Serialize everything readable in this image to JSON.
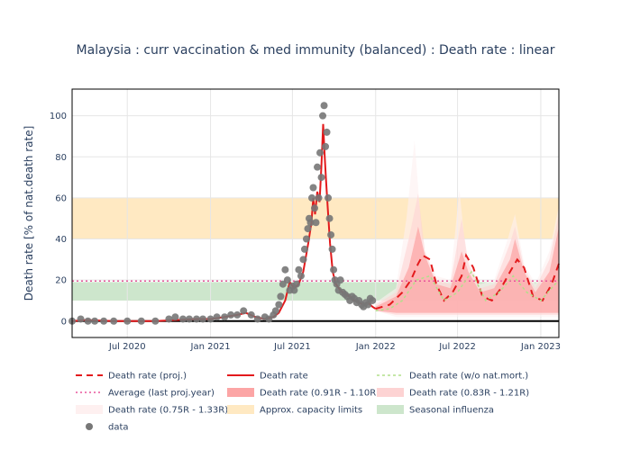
{
  "chart_data": {
    "type": "line",
    "title": "Malaysia : curr vaccination & med immunity (balanced) : Death rate : linear",
    "xlabel": "",
    "ylabel": "Death rate [% of nat.death rate]",
    "ylim": [
      -8,
      113
    ],
    "xlim": [
      "2020-03-01",
      "2023-02-10"
    ],
    "x_ticks": [
      {
        "date": "2020-07-01",
        "label": "Jul 2020"
      },
      {
        "date": "2021-01-01",
        "label": "Jan 2021"
      },
      {
        "date": "2021-07-01",
        "label": "Jul 2021"
      },
      {
        "date": "2022-01-01",
        "label": "Jan 2022"
      },
      {
        "date": "2022-07-01",
        "label": "Jul 2022"
      },
      {
        "date": "2023-01-01",
        "label": "Jan 2023"
      }
    ],
    "y_ticks": [
      0,
      20,
      40,
      60,
      80,
      100
    ],
    "bands": {
      "capacity": {
        "name": "Approx. capacity limits",
        "range": [
          40,
          60
        ],
        "color": "#ffe9c2"
      },
      "influenza": {
        "name": "Seasonal influenza",
        "range": [
          10,
          19
        ],
        "color": "#cde6cc"
      }
    },
    "average_last_proj_year": 19.5,
    "zero_line": 0,
    "colors": {
      "red": "#e31a1c",
      "band1": "#fca5a5",
      "band2": "#fdd3d3",
      "band3": "#fef0f0",
      "wo_mort": "#b2df8a",
      "avg": "#e8559b",
      "data": "#777777",
      "axis_text": "#2a3f5f"
    },
    "series": [
      {
        "name": "data",
        "kind": "points",
        "x": [
          "2020-03-01",
          "2020-03-20",
          "2020-04-05",
          "2020-04-20",
          "2020-05-10",
          "2020-06-01",
          "2020-07-01",
          "2020-08-01",
          "2020-09-01",
          "2020-10-01",
          "2020-10-15",
          "2020-11-01",
          "2020-11-15",
          "2020-12-01",
          "2020-12-15",
          "2021-01-01",
          "2021-01-15",
          "2021-02-01",
          "2021-02-15",
          "2021-03-01",
          "2021-03-15",
          "2021-04-01",
          "2021-04-15",
          "2021-05-01",
          "2021-05-10",
          "2021-05-20",
          "2021-05-25",
          "2021-06-01",
          "2021-06-05",
          "2021-06-10",
          "2021-06-15",
          "2021-06-20",
          "2021-06-25",
          "2021-07-01",
          "2021-07-05",
          "2021-07-10",
          "2021-07-15",
          "2021-07-20",
          "2021-07-25",
          "2021-07-28",
          "2021-08-01",
          "2021-08-04",
          "2021-08-07",
          "2021-08-10",
          "2021-08-13",
          "2021-08-16",
          "2021-08-19",
          "2021-08-22",
          "2021-08-25",
          "2021-08-28",
          "2021-08-31",
          "2021-09-03",
          "2021-09-06",
          "2021-09-09",
          "2021-09-12",
          "2021-09-15",
          "2021-09-18",
          "2021-09-21",
          "2021-09-24",
          "2021-09-27",
          "2021-09-30",
          "2021-10-03",
          "2021-10-07",
          "2021-10-11",
          "2021-10-15",
          "2021-10-20",
          "2021-10-25",
          "2021-10-30",
          "2021-11-05",
          "2021-11-10",
          "2021-11-15",
          "2021-11-20",
          "2021-11-25",
          "2021-12-01",
          "2021-12-05",
          "2021-12-10",
          "2021-12-15",
          "2021-12-20",
          "2021-12-25"
        ],
        "values": [
          0,
          1,
          0,
          0,
          0,
          0,
          0,
          0,
          0,
          1,
          2,
          1,
          1,
          1,
          1,
          1,
          2,
          2,
          3,
          3,
          5,
          3,
          1,
          2,
          1,
          3,
          5,
          8,
          12,
          18,
          25,
          20,
          15,
          17,
          15,
          18,
          25,
          22,
          30,
          35,
          40,
          45,
          50,
          48,
          60,
          65,
          55,
          48,
          75,
          60,
          82,
          70,
          100,
          105,
          85,
          92,
          60,
          50,
          42,
          35,
          25,
          20,
          18,
          15,
          20,
          14,
          13,
          12,
          10,
          12,
          11,
          9,
          10,
          8,
          7,
          9,
          8,
          11,
          10
        ]
      },
      {
        "name": "Death rate",
        "kind": "line",
        "x": [
          "2020-03-01",
          "2020-04-01",
          "2020-06-01",
          "2020-09-01",
          "2020-10-15",
          "2020-12-01",
          "2021-01-01",
          "2021-02-01",
          "2021-03-01",
          "2021-03-20",
          "2021-04-10",
          "2021-05-01",
          "2021-05-20",
          "2021-06-01",
          "2021-06-15",
          "2021-06-25",
          "2021-07-05",
          "2021-07-15",
          "2021-07-25",
          "2021-08-05",
          "2021-08-12",
          "2021-08-16",
          "2021-08-20",
          "2021-08-25",
          "2021-08-30",
          "2021-09-03",
          "2021-09-07",
          "2021-09-10",
          "2021-09-13",
          "2021-09-17",
          "2021-09-22",
          "2021-09-28",
          "2021-10-05",
          "2021-10-15",
          "2021-10-25",
          "2021-11-05",
          "2021-11-15",
          "2021-11-25",
          "2021-12-05",
          "2021-12-15",
          "2021-12-25",
          "2022-01-01"
        ],
        "values": [
          0,
          0.5,
          0,
          0,
          0.5,
          1,
          1,
          2,
          3,
          4,
          2,
          1,
          2,
          4,
          10,
          19,
          16,
          18,
          24,
          38,
          48,
          60,
          52,
          63,
          58,
          75,
          96,
          82,
          70,
          55,
          38,
          24,
          18,
          15,
          13,
          12,
          10,
          9,
          8,
          9,
          7,
          6
        ]
      },
      {
        "name": "Death rate (proj.)",
        "kind": "dashed",
        "x": [
          "2022-01-01",
          "2022-02-01",
          "2022-03-01",
          "2022-03-20",
          "2022-04-05",
          "2022-04-15",
          "2022-05-01",
          "2022-05-15",
          "2022-06-01",
          "2022-06-20",
          "2022-07-10",
          "2022-07-20",
          "2022-08-05",
          "2022-08-25",
          "2022-09-15",
          "2022-10-05",
          "2022-10-25",
          "2022-11-10",
          "2022-11-25",
          "2022-12-15",
          "2023-01-05",
          "2023-01-25",
          "2023-02-10"
        ],
        "values": [
          6,
          8,
          14,
          20,
          28,
          32,
          30,
          18,
          10,
          14,
          22,
          32,
          26,
          12,
          10,
          16,
          24,
          30,
          26,
          12,
          10,
          18,
          28
        ]
      },
      {
        "name": "Death rate (w/o nat.mort.)",
        "kind": "dotted",
        "x": [
          "2022-01-01",
          "2022-02-01",
          "2022-03-01",
          "2022-04-01",
          "2022-05-01",
          "2022-06-01",
          "2022-07-01",
          "2022-08-01",
          "2022-09-01",
          "2022-10-01",
          "2022-11-01",
          "2022-12-01",
          "2023-01-01",
          "2023-02-10"
        ],
        "values": [
          5,
          6,
          10,
          20,
          22,
          10,
          14,
          24,
          10,
          14,
          22,
          14,
          10,
          20
        ]
      }
    ],
    "projection_bands": [
      {
        "name": "Death rate (0.91R - 1.10R)",
        "x": [
          "2022-01-01",
          "2022-02-15",
          "2022-03-15",
          "2022-04-05",
          "2022-04-20",
          "2022-05-15",
          "2022-06-15",
          "2022-07-10",
          "2022-07-25",
          "2022-08-20",
          "2022-09-20",
          "2022-10-25",
          "2022-11-05",
          "2022-11-25",
          "2022-12-20",
          "2023-01-20",
          "2023-02-10"
        ],
        "lower": [
          5,
          4,
          4,
          4,
          4,
          4,
          4,
          4,
          4,
          4,
          4,
          4,
          4,
          4,
          4,
          4,
          4
        ],
        "upper": [
          7,
          12,
          26,
          46,
          32,
          18,
          16,
          34,
          24,
          14,
          16,
          30,
          40,
          24,
          14,
          24,
          46
        ]
      },
      {
        "name": "Death rate (0.83R - 1.21R)",
        "x": [
          "2022-01-01",
          "2022-02-15",
          "2022-03-15",
          "2022-04-05",
          "2022-04-20",
          "2022-05-15",
          "2022-06-15",
          "2022-07-10",
          "2022-07-25",
          "2022-08-20",
          "2022-09-20",
          "2022-10-25",
          "2022-11-05",
          "2022-11-25",
          "2022-12-20",
          "2023-01-20",
          "2023-02-10"
        ],
        "lower": [
          5,
          3,
          3,
          3,
          3,
          3,
          3,
          3,
          3,
          3,
          3,
          3,
          3,
          3,
          3,
          3,
          3
        ],
        "upper": [
          8,
          14,
          40,
          62,
          34,
          20,
          18,
          50,
          28,
          16,
          18,
          38,
          46,
          26,
          16,
          30,
          52
        ]
      },
      {
        "name": "Death rate (0.75R - 1.33R)",
        "x": [
          "2022-01-01",
          "2022-02-15",
          "2022-03-10",
          "2022-03-28",
          "2022-04-15",
          "2022-05-15",
          "2022-06-15",
          "2022-07-05",
          "2022-07-20",
          "2022-08-20",
          "2022-09-20",
          "2022-10-20",
          "2022-11-05",
          "2022-11-25",
          "2022-12-20",
          "2023-01-20",
          "2023-02-10"
        ],
        "lower": [
          5,
          2,
          2,
          2,
          2,
          2,
          2,
          2,
          2,
          2,
          2,
          2,
          2,
          2,
          2,
          2,
          2
        ],
        "upper": [
          9,
          16,
          50,
          88,
          36,
          22,
          20,
          64,
          32,
          18,
          20,
          40,
          52,
          28,
          18,
          34,
          56
        ]
      }
    ],
    "legend": [
      {
        "key": "proj",
        "label": "Death rate (proj.)"
      },
      {
        "key": "death",
        "label": "Death rate"
      },
      {
        "key": "wo",
        "label": "Death rate (w/o nat.mort.)"
      },
      {
        "key": "avg",
        "label": "Average (last proj.year)"
      },
      {
        "key": "b1",
        "label": "Death rate (0.91R - 1.10R)"
      },
      {
        "key": "b2",
        "label": "Death rate (0.83R - 1.21R)"
      },
      {
        "key": "b3",
        "label": "Death rate (0.75R - 1.33R)"
      },
      {
        "key": "cap",
        "label": "Approx. capacity limits"
      },
      {
        "key": "flu",
        "label": "Seasonal influenza"
      },
      {
        "key": "data",
        "label": "data"
      }
    ],
    "legend_position": "bottom"
  }
}
